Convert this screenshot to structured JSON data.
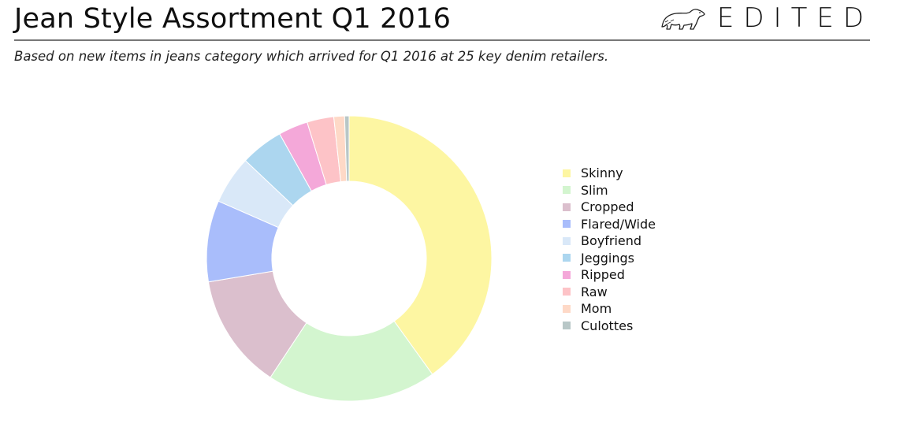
{
  "header": {
    "title": "Jean Style Assortment Q1 2016",
    "brand": "EDITED",
    "logo_icon": "polar-bear-icon",
    "subtitle": "Based on new items in jeans category which arrived for Q1 2016 at 25 key denim retailers."
  },
  "chart_data": {
    "type": "pie",
    "donut": true,
    "legend_position": "right",
    "title": "Jean Style Assortment Q1 2016",
    "subtitle": "Based on new items in jeans category which arrived for Q1 2016 at 25 key denim retailers.",
    "categories": [
      "Skinny",
      "Slim",
      "Cropped",
      "Flared/Wide",
      "Boyfriend",
      "Jeggings",
      "Ripped",
      "Raw",
      "Mom",
      "Culottes"
    ],
    "values": [
      39.6,
      19.0,
      12.9,
      9.1,
      5.4,
      4.8,
      3.3,
      3.0,
      1.2,
      0.5
    ],
    "colors": [
      "#fdf6a2",
      "#d3f5cf",
      "#dbbfcd",
      "#a9bdfb",
      "#d9e8f8",
      "#acd6ef",
      "#f4a8d9",
      "#fdc3c7",
      "#fed9c7",
      "#b8c7c7"
    ]
  }
}
